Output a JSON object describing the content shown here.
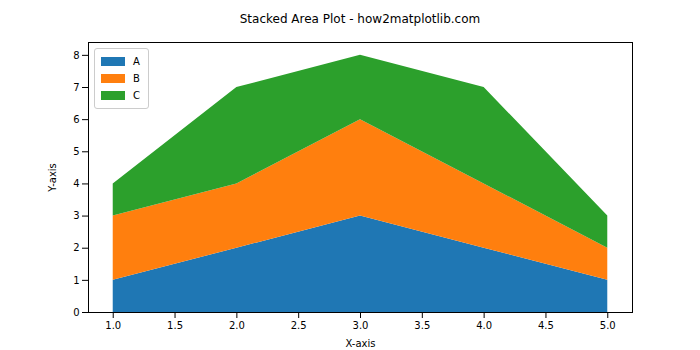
{
  "chart_data": {
    "type": "area",
    "stacked": true,
    "title": "Stacked Area Plot - how2matplotlib.com",
    "x_label": "X-axis",
    "y_label": "Y-axis",
    "x": [
      1,
      2,
      3,
      4,
      5
    ],
    "series": [
      {
        "name": "A",
        "color": "#1f77b4",
        "values": [
          1,
          2,
          3,
          2,
          1
        ]
      },
      {
        "name": "B",
        "color": "#ff7f0e",
        "values": [
          2,
          2,
          3,
          2,
          1
        ]
      },
      {
        "name": "C",
        "color": "#2ca02c",
        "values": [
          1,
          3,
          2,
          3,
          1
        ]
      }
    ],
    "xlim": [
      0.8,
      5.2
    ],
    "xticks": [
      {
        "value": 1,
        "label": "1.0"
      },
      {
        "value": 1.5,
        "label": "1.5"
      },
      {
        "value": 2,
        "label": "2.0"
      },
      {
        "value": 2.5,
        "label": "2.5"
      },
      {
        "value": 3,
        "label": "3.0"
      },
      {
        "value": 3.5,
        "label": "3.5"
      },
      {
        "value": 4,
        "label": "4.0"
      },
      {
        "value": 4.5,
        "label": "4.5"
      },
      {
        "value": 5,
        "label": "5.0"
      }
    ],
    "ylim": [
      0,
      8.4
    ],
    "yticks": [
      0,
      1,
      2,
      3,
      4,
      5,
      6,
      7,
      8
    ],
    "grid": false,
    "legend": "upper left"
  }
}
